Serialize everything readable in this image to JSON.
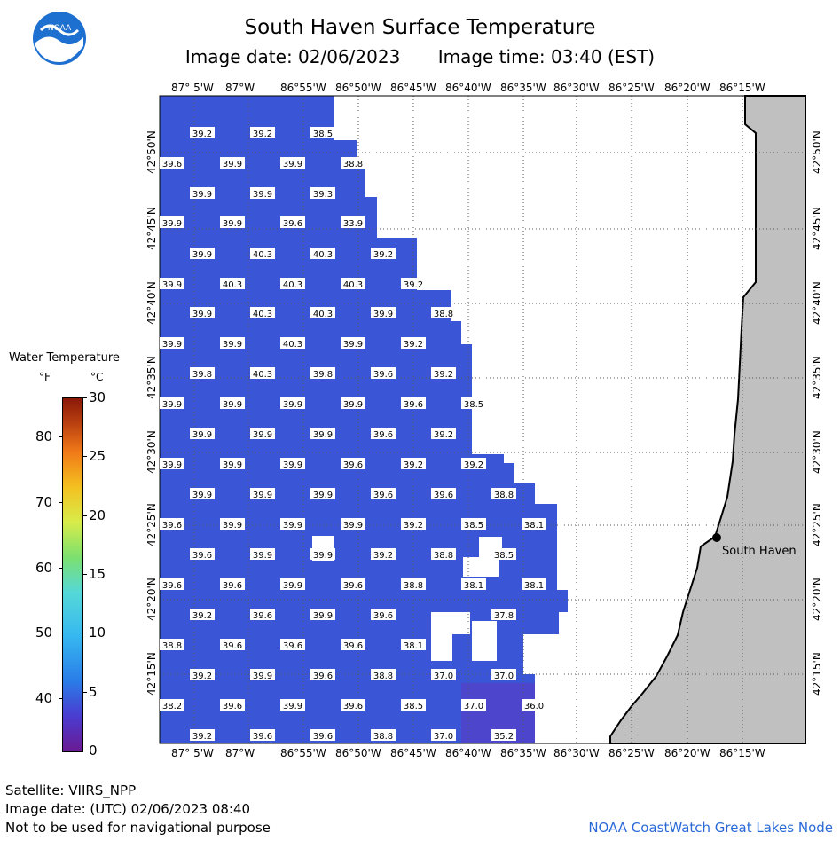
{
  "header": {
    "title": "South Haven Surface Temperature",
    "date_label": "Image date: 02/06/2023",
    "time_label": "Image time: 03:40 (EST)"
  },
  "logo": {
    "text": "NOAA",
    "icon": "noaa-logo"
  },
  "axes": {
    "lon_labels": [
      "87° 5'W",
      "87°W",
      "86°55'W",
      "86°50'W",
      "86°45'W",
      "86°40'W",
      "86°35'W",
      "86°30'W",
      "86°25'W",
      "86°20'W",
      "86°15'W"
    ],
    "lat_labels": [
      "42°50'N",
      "42°45'N",
      "42°40'N",
      "42°35'N",
      "42°30'N",
      "42°25'N",
      "42°20'N",
      "42°15'N"
    ]
  },
  "legend": {
    "title": "Water Temperature",
    "unit_f": "°F",
    "unit_c": "°C",
    "f_ticks": [
      "80",
      "70",
      "60",
      "50",
      "40"
    ],
    "c_ticks": [
      "30",
      "25",
      "20",
      "15",
      "10",
      "5",
      "0"
    ]
  },
  "place": {
    "name": "South Haven"
  },
  "temperatures": [
    [
      "39.2",
      "39.2",
      "38.5"
    ],
    [
      "39.6",
      "39.9",
      "39.9",
      "38.8"
    ],
    [
      "39.9",
      "39.9",
      "39.3"
    ],
    [
      "39.9",
      "39.9",
      "39.6",
      "33.9"
    ],
    [
      "39.9",
      "40.3",
      "40.3",
      "39.2"
    ],
    [
      "39.9",
      "40.3",
      "40.3",
      "40.3",
      "39.2"
    ],
    [
      "39.9",
      "40.3",
      "40.3",
      "39.9",
      "38.8"
    ],
    [
      "39.9",
      "39.9",
      "40.3",
      "39.9",
      "39.2"
    ],
    [
      "39.8",
      "40.3",
      "39.8",
      "39.6",
      "39.2"
    ],
    [
      "39.9",
      "39.9",
      "39.9",
      "39.9",
      "39.6",
      "38.5"
    ],
    [
      "39.9",
      "39.9",
      "39.9",
      "39.6",
      "39.2"
    ],
    [
      "39.9",
      "39.9",
      "39.9",
      "39.6",
      "39.2",
      "39.2"
    ],
    [
      "39.9",
      "39.9",
      "39.9",
      "39.6",
      "39.6",
      "38.8"
    ],
    [
      "39.6",
      "39.9",
      "39.9",
      "39.9",
      "39.2",
      "38.5",
      "38.1"
    ],
    [
      "39.6",
      "39.9",
      "39.9",
      "39.2",
      "38.8",
      "38.5"
    ],
    [
      "39.6",
      "39.6",
      "39.9",
      "39.6",
      "38.8",
      "38.1",
      "38.1"
    ],
    [
      "39.2",
      "39.6",
      "39.9",
      "39.6",
      "37.8"
    ],
    [
      "38.8",
      "39.6",
      "39.6",
      "39.6",
      "38.1"
    ],
    [
      "39.2",
      "39.9",
      "39.6",
      "38.8",
      "37.0",
      "37.0"
    ],
    [
      "38.2",
      "39.6",
      "39.9",
      "39.6",
      "38.5",
      "37.0",
      "36.0"
    ],
    [
      "39.2",
      "39.6",
      "39.6",
      "38.8",
      "37.0",
      "35.2"
    ]
  ],
  "footer": {
    "satellite": "Satellite: VIIRS_NPP",
    "utc_date": "Image date: (UTC) 02/06/2023  08:40",
    "disclaimer": "Not to be used for navigational purpose",
    "credit": "NOAA CoastWatch Great Lakes Node"
  },
  "colors": {
    "water": "#3a56d6",
    "land": "#c0c0c0",
    "credit": "#2a6ad8"
  }
}
